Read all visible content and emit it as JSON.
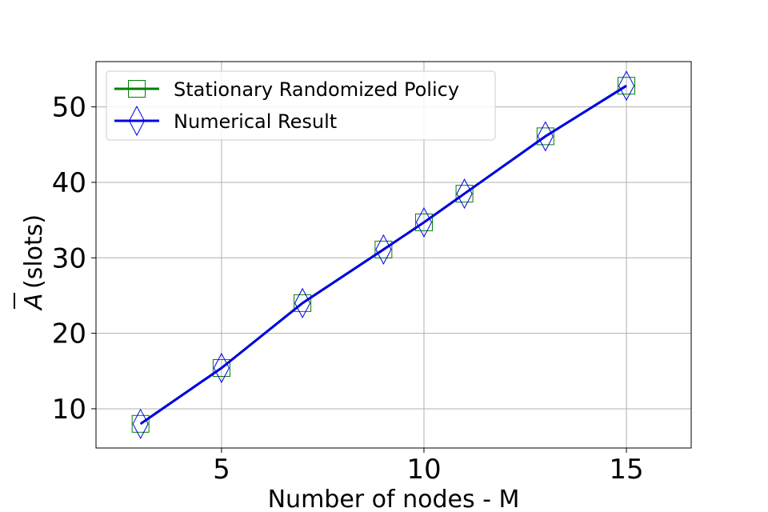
{
  "chart_data": {
    "type": "line",
    "xlabel": "Number of nodes - M",
    "ylabel": "(slots)",
    "ylabel_symbol": "A",
    "xlim": [
      1.9,
      16.6
    ],
    "ylim": [
      4.8,
      56.0
    ],
    "xticks": [
      5,
      10,
      15
    ],
    "yticks": [
      10,
      20,
      30,
      40,
      50
    ],
    "grid": true,
    "legend_position": "top-left",
    "x": [
      3,
      5,
      7,
      9,
      10,
      11,
      13,
      15
    ],
    "series": [
      {
        "name": "Stationary Randomized Policy",
        "values": [
          8.0,
          15.4,
          24.0,
          31.1,
          34.7,
          38.5,
          46.1,
          52.8
        ],
        "color": "#008000",
        "marker": "square"
      },
      {
        "name": "Numerical Result",
        "values": [
          8.0,
          15.4,
          24.0,
          31.1,
          34.7,
          38.5,
          46.1,
          52.8
        ],
        "color": "#0000e6",
        "marker": "diamond"
      }
    ]
  }
}
